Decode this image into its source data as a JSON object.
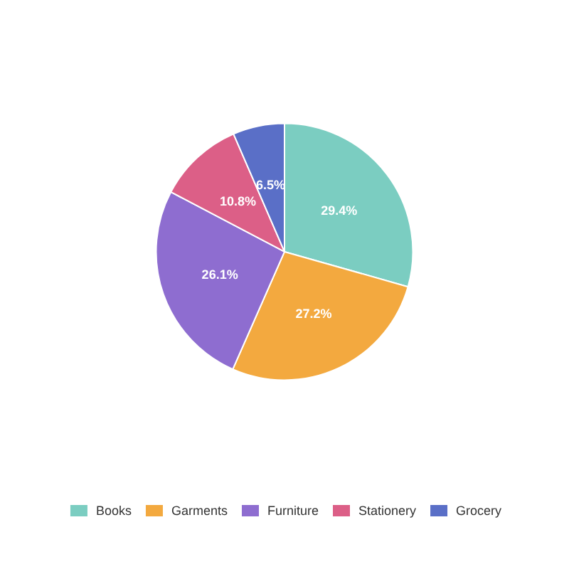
{
  "chart_data": {
    "type": "pie",
    "categories": [
      "Books",
      "Garments",
      "Furniture",
      "Stationery",
      "Grocery"
    ],
    "values": [
      29.4,
      27.2,
      26.1,
      10.8,
      6.5
    ],
    "value_labels": [
      "29.4%",
      "27.2%",
      "26.1%",
      "10.8%",
      "6.5%"
    ],
    "colors": [
      "#7bcdc1",
      "#f3a93f",
      "#8e6dd0",
      "#dc5f87",
      "#5a6fc7"
    ],
    "legend": "bottom"
  }
}
